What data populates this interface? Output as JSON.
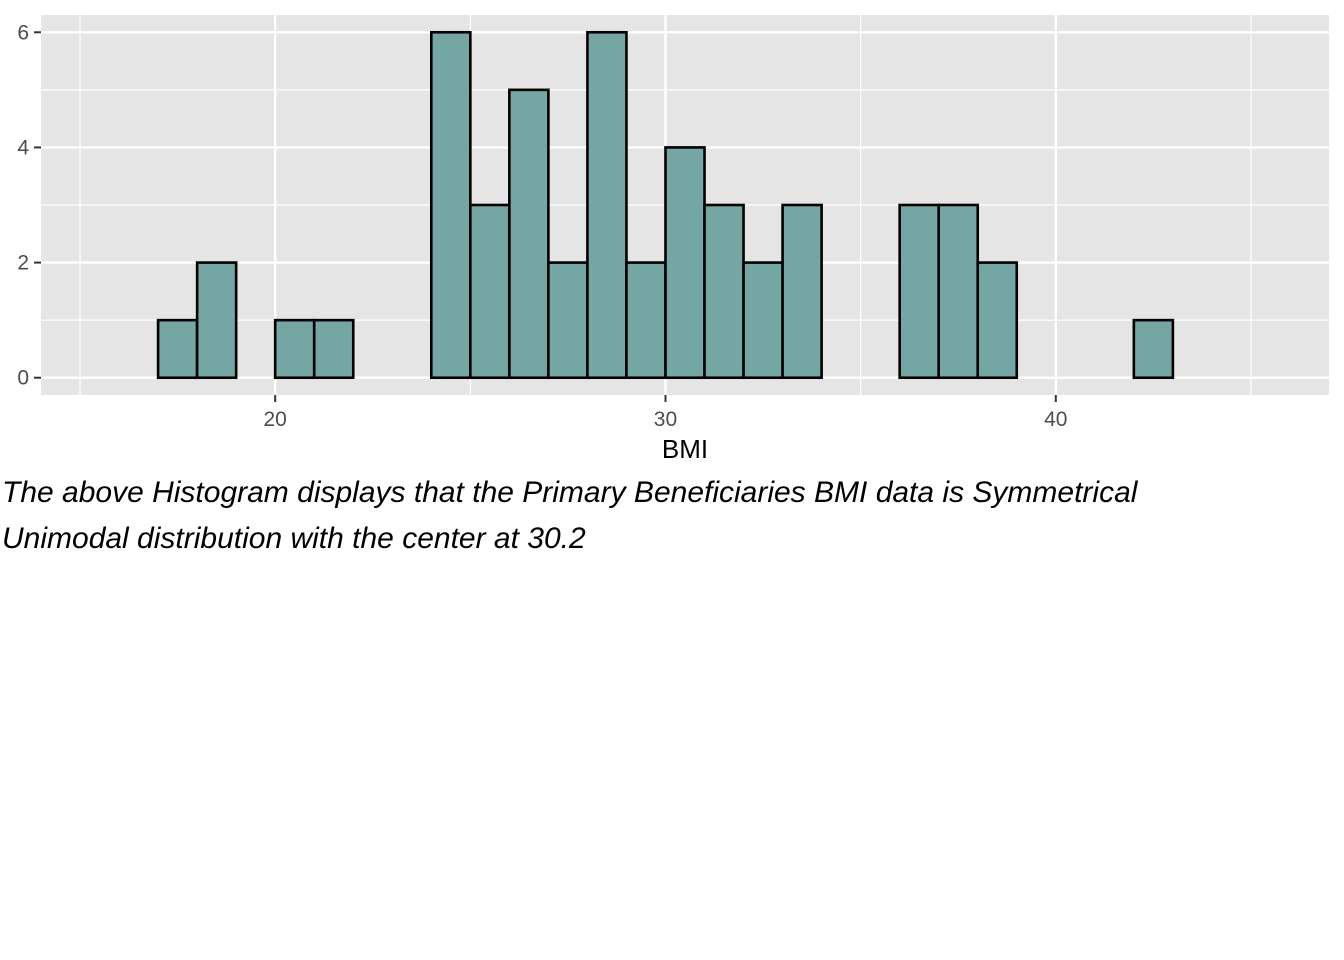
{
  "chart_data": {
    "type": "bar",
    "subtype": "histogram",
    "bin_width": 1,
    "bins": [
      {
        "x": 16.5,
        "count": 0
      },
      {
        "x": 17.5,
        "count": 1
      },
      {
        "x": 18.5,
        "count": 2
      },
      {
        "x": 19.5,
        "count": 0
      },
      {
        "x": 20.5,
        "count": 1
      },
      {
        "x": 21.5,
        "count": 1
      },
      {
        "x": 22.5,
        "count": 0
      },
      {
        "x": 23.5,
        "count": 0
      },
      {
        "x": 24.5,
        "count": 6
      },
      {
        "x": 25.5,
        "count": 3
      },
      {
        "x": 26.5,
        "count": 5
      },
      {
        "x": 27.5,
        "count": 2
      },
      {
        "x": 28.5,
        "count": 6
      },
      {
        "x": 29.5,
        "count": 2
      },
      {
        "x": 30.5,
        "count": 4
      },
      {
        "x": 31.5,
        "count": 3
      },
      {
        "x": 32.5,
        "count": 2
      },
      {
        "x": 33.5,
        "count": 3
      },
      {
        "x": 34.5,
        "count": 0
      },
      {
        "x": 35.5,
        "count": 0
      },
      {
        "x": 36.5,
        "count": 3
      },
      {
        "x": 37.5,
        "count": 3
      },
      {
        "x": 38.5,
        "count": 2
      },
      {
        "x": 39.5,
        "count": 0
      },
      {
        "x": 40.5,
        "count": 0
      },
      {
        "x": 41.5,
        "count": 0
      },
      {
        "x": 42.5,
        "count": 1
      },
      {
        "x": 43.5,
        "count": 0
      },
      {
        "x": 44.5,
        "count": 0
      }
    ],
    "xlabel": "BMI",
    "ylabel": "",
    "xlim": [
      14,
      47
    ],
    "ylim": [
      -0.3,
      6.3
    ],
    "x_ticks": [
      20,
      30,
      40
    ],
    "x_tick_labels": [
      "20",
      "30",
      "40"
    ],
    "y_ticks": [
      0,
      2,
      4,
      6
    ],
    "y_tick_labels": [
      "0",
      "2",
      "4",
      "6"
    ],
    "grid": true,
    "colors": {
      "fill": "#74a6a4",
      "outline": "#000000",
      "panel": "#e5e5e5",
      "grid": "#ffffff"
    }
  },
  "caption": {
    "line1": "The above Histogram displays that the Primary Beneficiaries BMI data is Symmetrical",
    "line2": "Unimodal distribution with the center at 30.2"
  }
}
